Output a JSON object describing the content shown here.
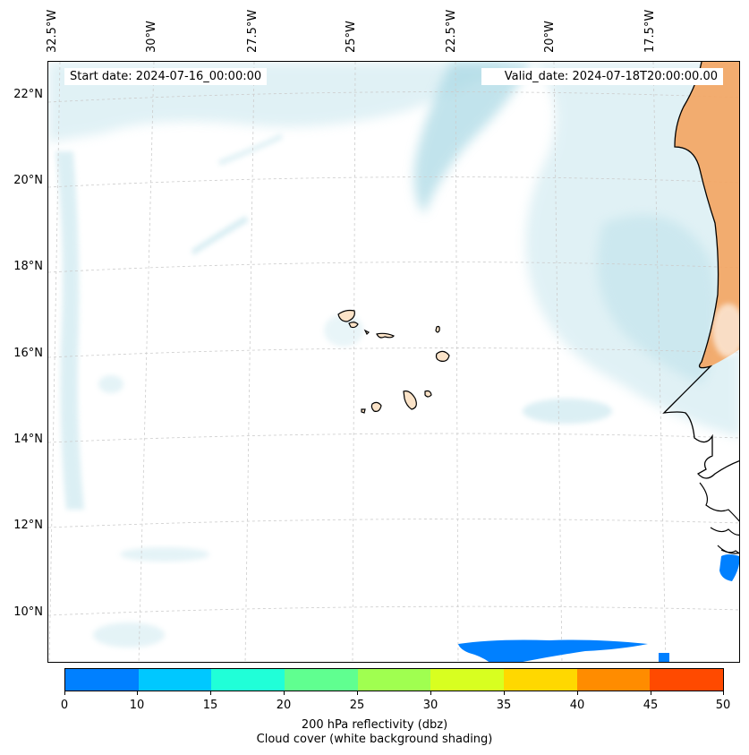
{
  "header": {
    "start_date": "Start date: 2024-07-16_00:00:00",
    "valid_date": "Valid_date: 2024-07-18T20:00:00.00"
  },
  "longitude_labels": [
    "32.5°W",
    "30°W",
    "27.5°W",
    "25°W",
    "22.5°W",
    "20°W",
    "17.5°W"
  ],
  "latitude_labels": [
    "22°N",
    "20°N",
    "18°N",
    "16°N",
    "14°N",
    "12°N",
    "10°N"
  ],
  "colorbar": {
    "ticks": [
      "0",
      "10",
      "15",
      "20",
      "25",
      "30",
      "35",
      "40",
      "45",
      "50"
    ],
    "colors": [
      "#0080ff",
      "#00c8ff",
      "#20ffd8",
      "#60ff90",
      "#a0ff50",
      "#d8ff20",
      "#ffd800",
      "#ff8c00",
      "#ff4a00"
    ],
    "label_line1": "200 hPa reflectivity (dbz)",
    "label_line2": "Cloud cover (white background shading)"
  },
  "colors": {
    "cloud": "#a8d8e4",
    "land": "#f4a460",
    "coast": "#000000",
    "echo": "#0080ff"
  }
}
